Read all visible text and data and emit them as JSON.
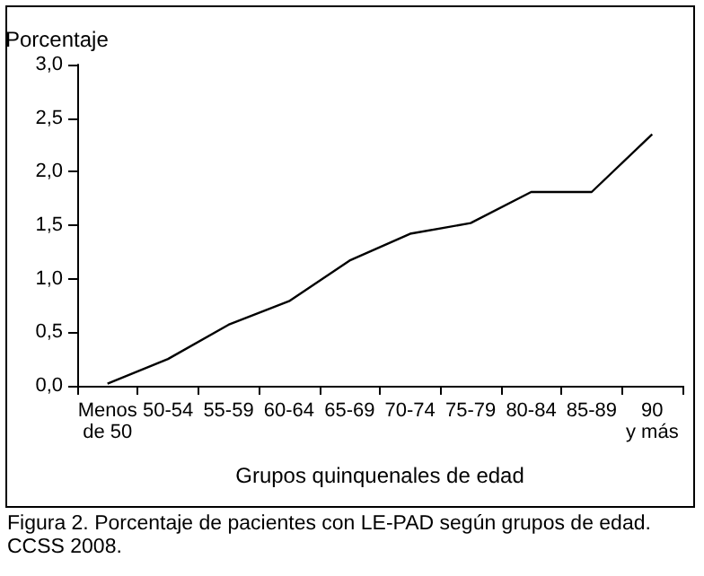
{
  "chart_data": {
    "type": "line",
    "ylabel": "Porcentaje",
    "xlabel": "Grupos quinquenales de edad",
    "annotations": [
      "Figura 2.  Porcentaje de pacientes con LE-PAD según grupos de edad. CCSS 2008."
    ],
    "categories": [
      "Menos\nde 50",
      "50-54",
      "55-59",
      "60-64",
      "65-69",
      "70-74",
      "75-79",
      "80-84",
      "85-89",
      "90\ny más"
    ],
    "series": [
      {
        "color": "#000000",
        "values": [
          0.02,
          0.25,
          0.57,
          0.79,
          1.17,
          1.42,
          1.52,
          1.81,
          1.81,
          2.35
        ]
      }
    ],
    "ylim": [
      0,
      3
    ],
    "yticks": [
      {
        "value": 0,
        "label": "0,0"
      },
      {
        "value": 0.5,
        "label": "0,5"
      },
      {
        "value": 1,
        "label": "1,0"
      },
      {
        "value": 1.5,
        "label": "1,5"
      },
      {
        "value": 2,
        "label": "2,0"
      },
      {
        "value": 2.5,
        "label": "2,5"
      },
      {
        "value": 3,
        "label": "3,0"
      }
    ],
    "grid": false,
    "marker": "none",
    "line_style": "solid"
  }
}
